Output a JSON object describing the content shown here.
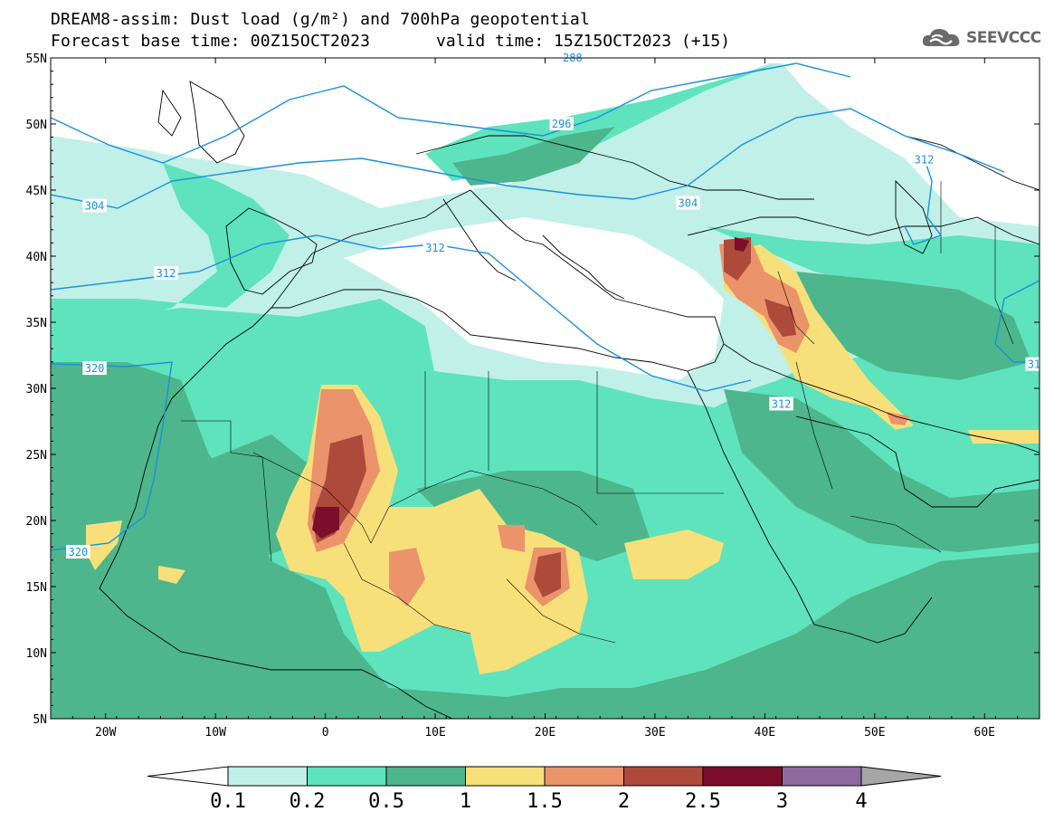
{
  "header": {
    "title_line1": "DREAM8-assim: Dust load (g/m²) and 700hPa geopotential",
    "forecast_base": "Forecast base time: 00Z15OCT2023",
    "valid_time": "valid time: 15Z15OCT2023 (+15)"
  },
  "logo": {
    "text": "SEEVCCC",
    "icon": "cloud-icon"
  },
  "axes": {
    "lat_labels": [
      "55N",
      "50N",
      "45N",
      "40N",
      "35N",
      "30N",
      "25N",
      "20N",
      "15N",
      "10N",
      "5N"
    ],
    "lat_values": [
      55,
      50,
      45,
      40,
      35,
      30,
      25,
      20,
      15,
      10,
      5
    ],
    "lon_labels": [
      "20W",
      "10W",
      "0",
      "10E",
      "20E",
      "30E",
      "40E",
      "50E",
      "60E"
    ],
    "lon_values": [
      -20,
      -10,
      0,
      10,
      20,
      30,
      40,
      50,
      60
    ],
    "lon_range": [
      -25,
      65
    ],
    "lat_range": [
      5,
      55
    ]
  },
  "contours": {
    "color": "#1a8fe0",
    "labels": [
      {
        "text": "288",
        "lon": 22.5,
        "lat": 55.0
      },
      {
        "text": "296",
        "lon": 21.5,
        "lat": 50.0
      },
      {
        "text": "304",
        "lon": -21.0,
        "lat": 43.8
      },
      {
        "text": "304",
        "lon": 33.0,
        "lat": 44.0
      },
      {
        "text": "312",
        "lon": -14.5,
        "lat": 38.7
      },
      {
        "text": "312",
        "lon": 10.0,
        "lat": 40.6
      },
      {
        "text": "312",
        "lon": 41.5,
        "lat": 28.8
      },
      {
        "text": "312",
        "lon": 54.5,
        "lat": 47.3
      },
      {
        "text": "320",
        "lon": -21.0,
        "lat": 31.5
      },
      {
        "text": "320",
        "lon": -22.5,
        "lat": 17.6
      },
      {
        "text": "31",
        "lon": 64.5,
        "lat": 31.8
      }
    ]
  },
  "colorbar": {
    "labels": [
      "0.1",
      "0.2",
      "0.5",
      "1",
      "1.5",
      "2",
      "2.5",
      "3",
      "4"
    ],
    "colors": [
      "#c1f0e8",
      "#5ee3bd",
      "#4db68c",
      "#f7e07a",
      "#eb936a",
      "#ad4a3c",
      "#7b0e2a",
      "#8e6aa0"
    ],
    "under_color": "#ffffff",
    "over_color": "#a6a6a6"
  },
  "layers": {
    "level_0_1": "#c1f0e8",
    "level_0_2": "#5ee3bd",
    "level_0_5": "#4db68c",
    "level_1": "#f7e07a",
    "level_1_5": "#eb936a",
    "level_2": "#ad4a3c",
    "level_2_5": "#7b0e2a"
  }
}
